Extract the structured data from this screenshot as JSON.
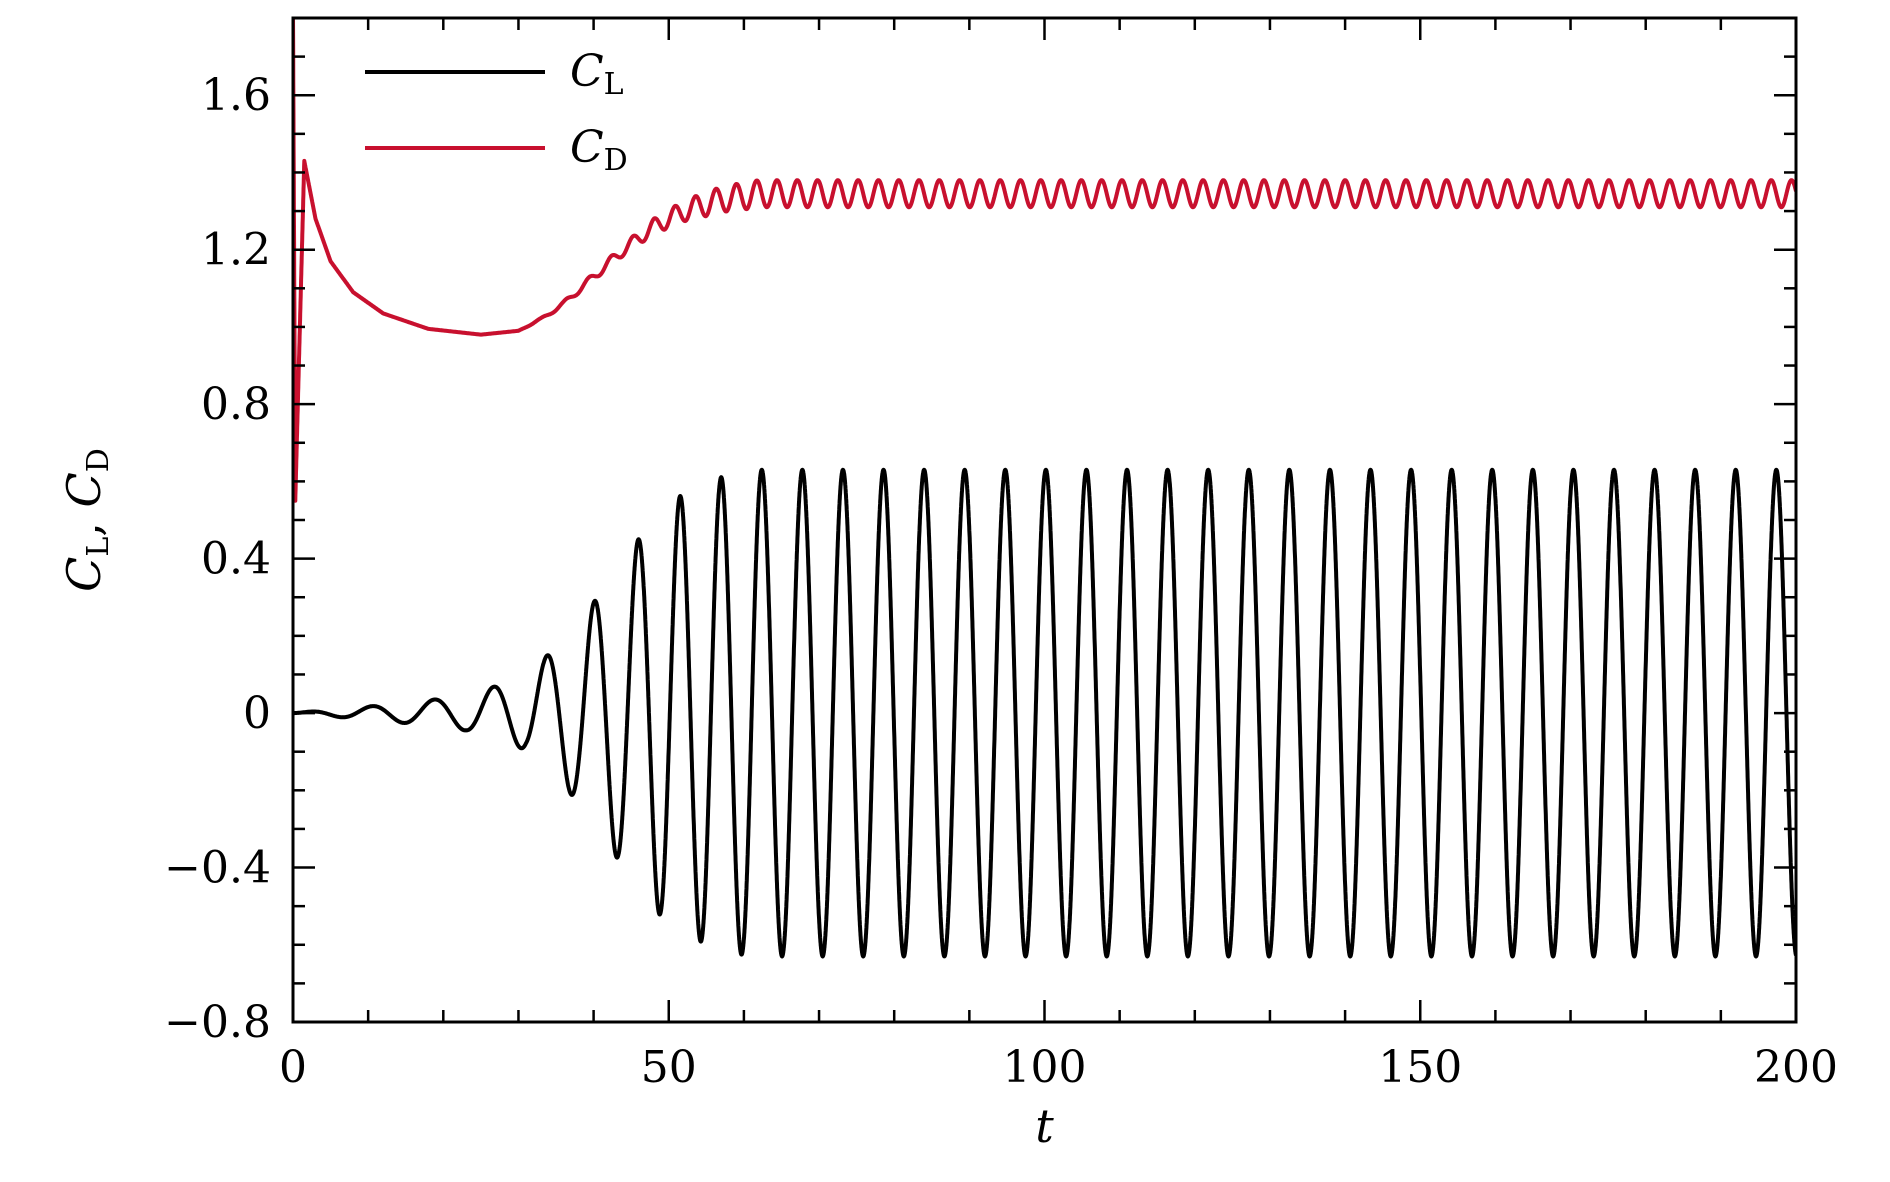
{
  "chart_data": {
    "type": "line",
    "xlabel": "t",
    "ylabel": {
      "main": "C",
      "sub1": "L",
      "sep": ", ",
      "sub2": "D"
    },
    "xlim": [
      0,
      200
    ],
    "ylim": [
      -0.8,
      1.8
    ],
    "x_ticks": [
      0,
      50,
      100,
      150,
      200
    ],
    "x_tick_labels": [
      "0",
      "50",
      "100",
      "150",
      "200"
    ],
    "y_ticks": [
      -0.8,
      -0.4,
      0,
      0.4,
      0.8,
      1.2,
      1.6
    ],
    "y_tick_labels": [
      "−0.8",
      "−0.4",
      "0",
      "0.4",
      "0.8",
      "1.2",
      "1.6"
    ],
    "grid": false,
    "legend_position": "top-left",
    "series": [
      {
        "name": "C_L",
        "legend_main": "C",
        "legend_sub": "L",
        "color": "#000000",
        "description_values": {
          "steady_amplitude": 0.63,
          "period": 5.4,
          "growth_peaks": [
            [
              6,
              0.01
            ],
            [
              14.5,
              0.025
            ],
            [
              23,
              0.045
            ],
            [
              31,
              0.095
            ],
            [
              38,
              0.23
            ],
            [
              44,
              0.4
            ],
            [
              49.5,
              0.54
            ],
            [
              55,
              0.6
            ],
            [
              60.5,
              0.63
            ]
          ],
          "early_troughs": [
            [
              10,
              -0.01
            ],
            [
              19,
              -0.02
            ],
            [
              27,
              -0.05
            ],
            [
              34.5,
              -0.14
            ],
            [
              41,
              -0.31
            ],
            [
              47,
              -0.47
            ],
            [
              52.5,
              -0.56
            ],
            [
              58,
              -0.61
            ]
          ]
        }
      },
      {
        "name": "C_D",
        "legend_main": "C",
        "legend_sub": "D",
        "color": "#c8102e",
        "description_values": {
          "start": [
            0,
            1.8
          ],
          "dip": [
            0.3,
            0.55
          ],
          "initial_peak": [
            1.5,
            1.43
          ],
          "minimum": [
            25,
            0.98
          ],
          "steady_mean": 1.345,
          "steady_amplitude": 0.035,
          "period": 2.7
        }
      }
    ]
  }
}
